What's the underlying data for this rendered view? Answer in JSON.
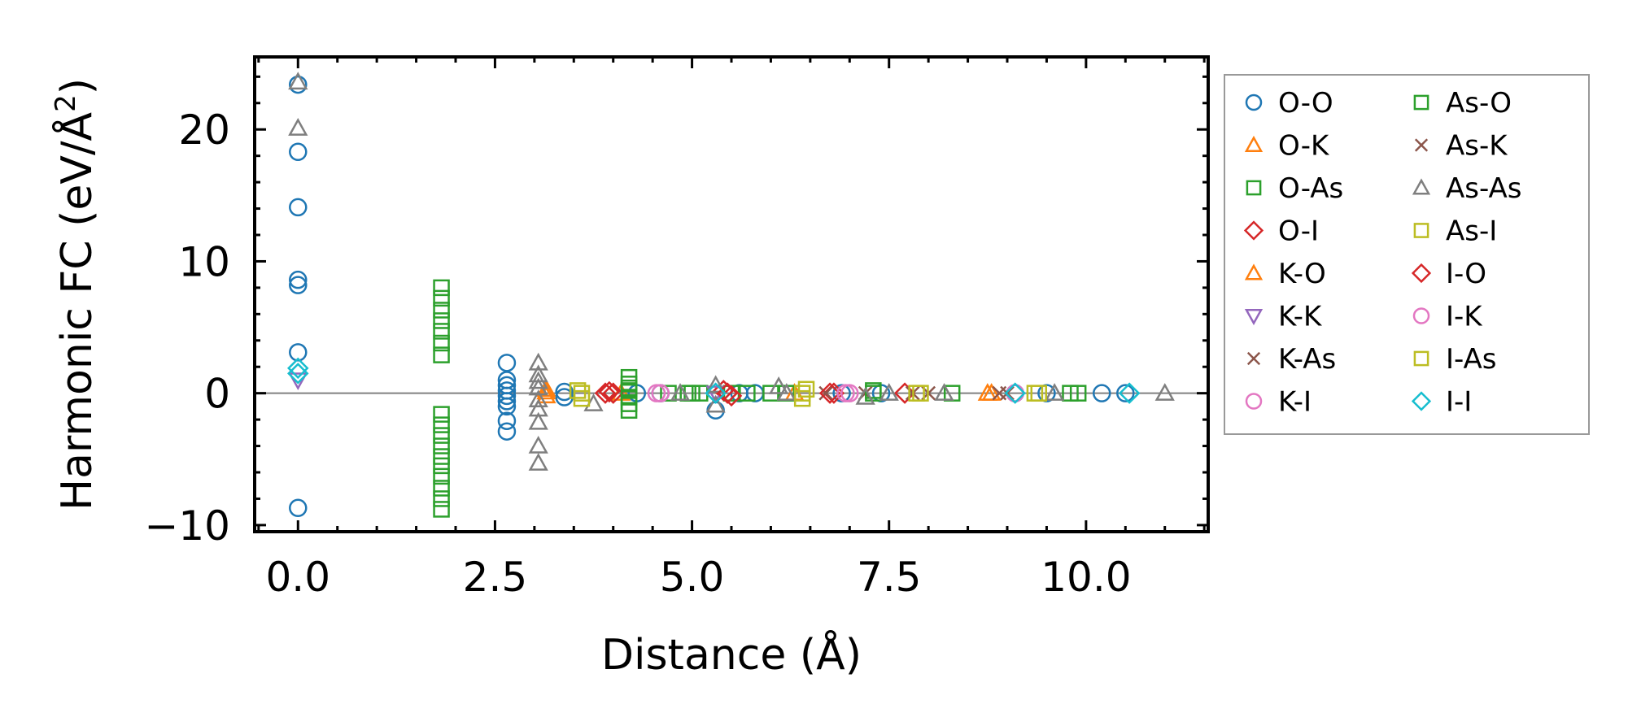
{
  "chart_data": {
    "type": "scatter",
    "xlabel": "Distance (Å)",
    "ylabel_main": "Harmonic FC (eV/Å",
    "ylabel_sup": "2",
    "ylabel_close": ")",
    "xlim": [
      -0.55,
      11.55
    ],
    "ylim": [
      -10.5,
      25.5
    ],
    "xticks": [
      0.0,
      2.5,
      5.0,
      7.5,
      10.0
    ],
    "xtick_labels": [
      "0.0",
      "2.5",
      "5.0",
      "7.5",
      "10.0"
    ],
    "yticks": [
      -10,
      0,
      10,
      20
    ],
    "ytick_labels": [
      "−10",
      "0",
      "10",
      "20"
    ],
    "hline": 0,
    "legend_position": "right, outside",
    "series": [
      {
        "name": "O-O",
        "marker": "circle",
        "color": "#1f77b4",
        "points": [
          [
            0,
            23.4
          ],
          [
            0,
            18.3
          ],
          [
            0,
            14.1
          ],
          [
            0,
            8.6
          ],
          [
            0,
            8.2
          ],
          [
            0,
            3.1
          ],
          [
            0,
            -8.7
          ],
          [
            2.65,
            2.3
          ],
          [
            2.65,
            1.0
          ],
          [
            2.65,
            0.6
          ],
          [
            2.65,
            0.2
          ],
          [
            2.65,
            -0.2
          ],
          [
            2.65,
            -0.6
          ],
          [
            2.65,
            -1.0
          ],
          [
            2.65,
            -2.1
          ],
          [
            2.65,
            -2.9
          ],
          [
            3.38,
            0.1
          ],
          [
            3.38,
            -0.3
          ],
          [
            4.3,
            0
          ],
          [
            4.6,
            0
          ],
          [
            5.3,
            -1.3
          ],
          [
            5.6,
            0
          ],
          [
            5.8,
            0
          ],
          [
            6.9,
            0
          ],
          [
            7.4,
            0
          ],
          [
            9.1,
            0
          ],
          [
            9.5,
            0
          ],
          [
            10.2,
            0
          ],
          [
            10.5,
            0
          ]
        ]
      },
      {
        "name": "O-K",
        "marker": "triangle-up",
        "color": "#ff7f0e",
        "points": [
          [
            3.15,
            0.3
          ],
          [
            3.15,
            -0.2
          ],
          [
            4.1,
            0
          ],
          [
            6.3,
            0
          ],
          [
            8.8,
            0
          ]
        ]
      },
      {
        "name": "O-As",
        "marker": "square",
        "color": "#2ca02c",
        "points": [
          [
            1.82,
            8.0
          ],
          [
            1.82,
            7.2
          ],
          [
            1.82,
            6.3
          ],
          [
            1.82,
            5.5
          ],
          [
            1.82,
            4.7
          ],
          [
            1.82,
            3.8
          ],
          [
            1.82,
            2.9
          ],
          [
            1.82,
            -1.6
          ],
          [
            1.82,
            -2.4
          ],
          [
            1.82,
            -3.2
          ],
          [
            1.82,
            -4.0
          ],
          [
            1.82,
            -4.8
          ],
          [
            1.82,
            -5.5
          ],
          [
            1.82,
            -6.3
          ],
          [
            1.82,
            -7.2
          ],
          [
            1.82,
            -8.0
          ],
          [
            1.82,
            -8.8
          ],
          [
            4.2,
            1.2
          ],
          [
            4.2,
            0.7
          ],
          [
            4.2,
            0.2
          ],
          [
            4.2,
            -0.3
          ],
          [
            4.2,
            -0.8
          ],
          [
            4.2,
            -1.3
          ],
          [
            4.7,
            0
          ],
          [
            4.95,
            0
          ],
          [
            5.1,
            0
          ],
          [
            5.5,
            0
          ],
          [
            5.7,
            0
          ],
          [
            6.0,
            0
          ],
          [
            6.2,
            0
          ],
          [
            7.3,
            0
          ],
          [
            8.3,
            0
          ],
          [
            9.8,
            0
          ]
        ]
      },
      {
        "name": "O-I",
        "marker": "diamond",
        "color": "#d62728",
        "points": [
          [
            3.9,
            0
          ],
          [
            4.0,
            0
          ],
          [
            5.4,
            0.2
          ],
          [
            5.5,
            -0.2
          ],
          [
            6.8,
            0
          ],
          [
            7.7,
            0
          ]
        ]
      },
      {
        "name": "K-O",
        "marker": "triangle-up",
        "color": "#ff7f0e",
        "points": [
          [
            3.15,
            0.1
          ],
          [
            8.75,
            0
          ]
        ]
      },
      {
        "name": "K-K",
        "marker": "triangle-down",
        "color": "#9467bd",
        "points": [
          [
            0,
            1.0
          ],
          [
            5.3,
            0
          ]
        ]
      },
      {
        "name": "K-As",
        "marker": "x",
        "color": "#8c564b",
        "points": [
          [
            7.2,
            0
          ],
          [
            8.0,
            0
          ],
          [
            8.9,
            0
          ]
        ]
      },
      {
        "name": "K-I",
        "marker": "circle",
        "color": "#e377c2",
        "points": [
          [
            4.6,
            0
          ],
          [
            7.0,
            0
          ],
          [
            9.1,
            0
          ]
        ]
      },
      {
        "name": "As-O",
        "marker": "square",
        "color": "#2ca02c",
        "points": [
          [
            4.2,
            0.4
          ],
          [
            5.0,
            0
          ],
          [
            7.3,
            0.2
          ],
          [
            9.9,
            0
          ]
        ]
      },
      {
        "name": "As-K",
        "marker": "x",
        "color": "#8c564b",
        "points": [
          [
            6.7,
            0
          ],
          [
            7.8,
            0
          ],
          [
            9.0,
            0
          ]
        ]
      },
      {
        "name": "As-As",
        "marker": "triangle-up",
        "color": "#7f7f7f",
        "points": [
          [
            0,
            23.6
          ],
          [
            0,
            20.1
          ],
          [
            3.05,
            2.3
          ],
          [
            3.05,
            1.4
          ],
          [
            3.05,
            0.9
          ],
          [
            3.05,
            0.4
          ],
          [
            3.05,
            -0.5
          ],
          [
            3.05,
            -1.2
          ],
          [
            3.05,
            -2.2
          ],
          [
            3.05,
            -4.0
          ],
          [
            3.05,
            -5.3
          ],
          [
            3.75,
            -0.8
          ],
          [
            4.85,
            0
          ],
          [
            5.3,
            0.6
          ],
          [
            5.3,
            -0.9
          ],
          [
            6.1,
            0.5
          ],
          [
            6.2,
            0
          ],
          [
            7.2,
            -0.3
          ],
          [
            7.5,
            0
          ],
          [
            8.2,
            0
          ],
          [
            9.6,
            0
          ],
          [
            11.0,
            0
          ]
        ]
      },
      {
        "name": "As-I",
        "marker": "square",
        "color": "#bcbd22",
        "points": [
          [
            3.55,
            0.2
          ],
          [
            3.6,
            -0.4
          ],
          [
            6.4,
            0
          ],
          [
            7.9,
            0
          ],
          [
            9.4,
            0
          ]
        ]
      },
      {
        "name": "I-O",
        "marker": "diamond",
        "color": "#d62728",
        "points": [
          [
            3.95,
            0.1
          ],
          [
            5.45,
            0
          ],
          [
            6.75,
            0
          ]
        ]
      },
      {
        "name": "I-K",
        "marker": "circle",
        "color": "#e377c2",
        "points": [
          [
            4.55,
            0
          ],
          [
            6.95,
            0
          ]
        ]
      },
      {
        "name": "I-As",
        "marker": "square",
        "color": "#bcbd22",
        "points": [
          [
            3.6,
            0
          ],
          [
            6.45,
            0.3
          ],
          [
            6.4,
            -0.4
          ],
          [
            7.85,
            0
          ],
          [
            9.35,
            0
          ]
        ]
      },
      {
        "name": "I-I",
        "marker": "diamond",
        "color": "#17becf",
        "points": [
          [
            0,
            1.9
          ],
          [
            0,
            1.5
          ],
          [
            5.3,
            0
          ],
          [
            9.1,
            0
          ],
          [
            10.55,
            0
          ]
        ]
      }
    ]
  }
}
